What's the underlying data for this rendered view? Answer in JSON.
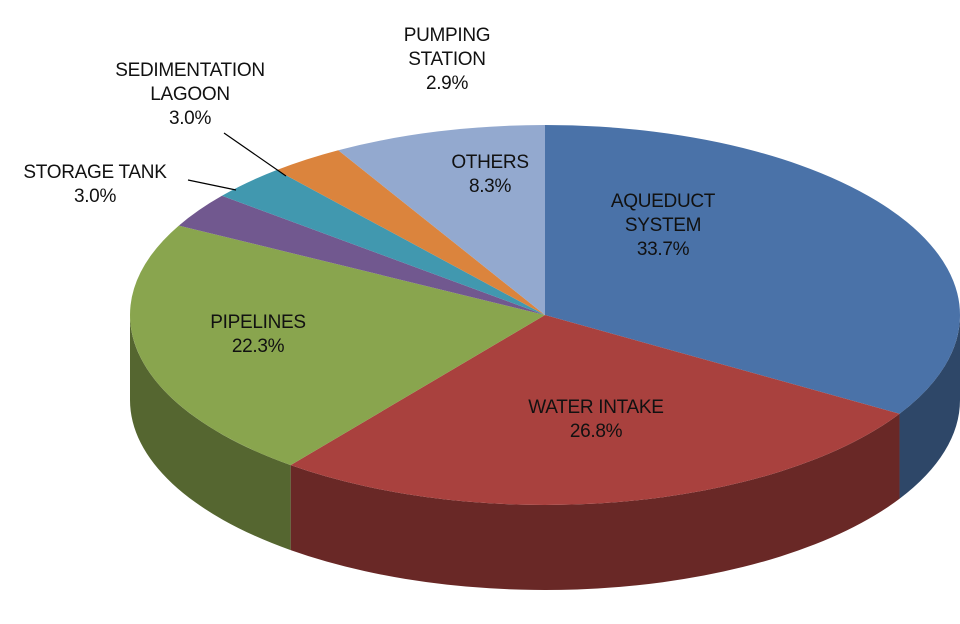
{
  "chart_data": {
    "type": "pie",
    "categories": [
      "AQUEDUCT SYSTEM",
      "WATER INTAKE",
      "PIPELINES",
      "STORAGE TANK",
      "SEDIMENTATION LAGOON",
      "PUMPING STATION",
      "OTHERS"
    ],
    "values": [
      33.7,
      26.8,
      22.3,
      3.0,
      3.0,
      2.9,
      8.3
    ],
    "value_labels": [
      "33.7%",
      "26.8%",
      "22.3%",
      "3.0%",
      "3.0%",
      "2.9%",
      "8.3%"
    ],
    "colors": [
      "#4a72a8",
      "#a9413e",
      "#89a54e",
      "#71588f",
      "#4198af",
      "#db843d",
      "#93a9cf"
    ]
  }
}
